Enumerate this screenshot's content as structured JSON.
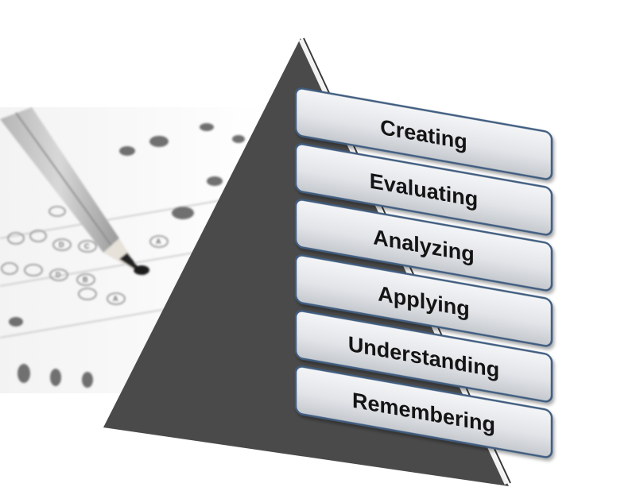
{
  "diagram": {
    "type": "pyramid",
    "levels": [
      {
        "label": "Creating"
      },
      {
        "label": "Evaluating"
      },
      {
        "label": "Analyzing"
      },
      {
        "label": "Applying"
      },
      {
        "label": "Understanding"
      },
      {
        "label": "Remembering"
      }
    ],
    "colors": {
      "pyramid_fill": "#4a4a4a",
      "pyramid_edge_highlight": "#f2f2f2",
      "box_fill_top": "#f4f5f7",
      "box_fill_bottom": "#c9cdd2",
      "box_border": "#3f5d80",
      "text": "#141414"
    },
    "photo": {
      "subject": "pencil-on-answer-sheet",
      "tone": "grayscale",
      "bubble_letters": [
        "A",
        "B",
        "C",
        "D"
      ]
    }
  }
}
